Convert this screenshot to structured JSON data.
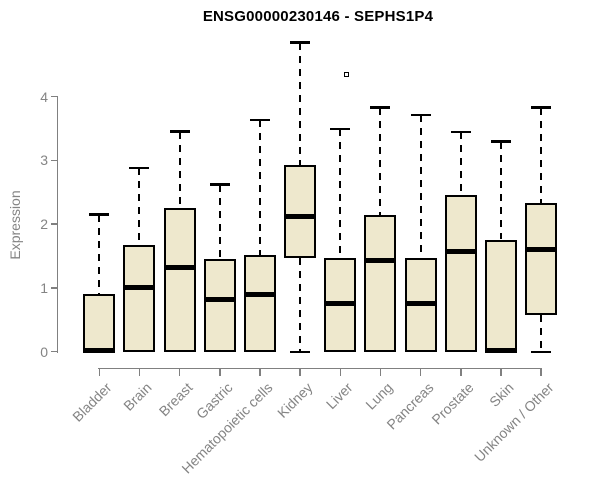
{
  "chart_data": {
    "type": "boxplot",
    "title": "ENSG00000230146 - SEPHS1P4",
    "ylabel": "Expression",
    "xlabel": "",
    "ylim": [
      0,
      4.87
    ],
    "yticks": [
      0,
      1,
      2,
      3,
      4
    ],
    "grid": false,
    "legend": null,
    "categories": [
      "Bladder",
      "Brain",
      "Breast",
      "Gastric",
      "Hematopoietic cells",
      "Kidney",
      "Liver",
      "Lung",
      "Pancreas",
      "Prostate",
      "Skin",
      "Unknown / Other"
    ],
    "series": [
      {
        "name": "Bladder",
        "whisker_low": 0,
        "q1": 0,
        "median": 0.02,
        "q3": 0.9,
        "whisker_high": 2.15,
        "outliers": []
      },
      {
        "name": "Brain",
        "whisker_low": 0,
        "q1": 0,
        "median": 1.0,
        "q3": 1.68,
        "whisker_high": 2.88,
        "outliers": []
      },
      {
        "name": "Breast",
        "whisker_low": 0,
        "q1": 0,
        "median": 1.32,
        "q3": 2.26,
        "whisker_high": 3.45,
        "outliers": []
      },
      {
        "name": "Gastric",
        "whisker_low": 0,
        "q1": 0,
        "median": 0.82,
        "q3": 1.46,
        "whisker_high": 2.62,
        "outliers": []
      },
      {
        "name": "Hematopoietic cells",
        "whisker_low": 0,
        "q1": 0,
        "median": 0.9,
        "q3": 1.52,
        "whisker_high": 3.63,
        "outliers": []
      },
      {
        "name": "Kidney",
        "whisker_low": 0,
        "q1": 1.47,
        "median": 2.12,
        "q3": 2.93,
        "whisker_high": 4.85,
        "outliers": []
      },
      {
        "name": "Liver",
        "whisker_low": 0,
        "q1": 0,
        "median": 0.76,
        "q3": 1.47,
        "whisker_high": 3.49,
        "outliers": [
          4.35
        ]
      },
      {
        "name": "Lung",
        "whisker_low": 0,
        "q1": 0,
        "median": 1.43,
        "q3": 2.14,
        "whisker_high": 3.83,
        "outliers": []
      },
      {
        "name": "Pancreas",
        "whisker_low": 0,
        "q1": 0,
        "median": 0.75,
        "q3": 1.47,
        "whisker_high": 3.71,
        "outliers": []
      },
      {
        "name": "Prostate",
        "whisker_low": 0,
        "q1": 0,
        "median": 1.57,
        "q3": 2.46,
        "whisker_high": 3.44,
        "outliers": []
      },
      {
        "name": "Skin",
        "whisker_low": 0,
        "q1": 0,
        "median": 0.02,
        "q3": 1.76,
        "whisker_high": 3.29,
        "outliers": []
      },
      {
        "name": "Unknown / Other",
        "whisker_low": 0,
        "q1": 0.57,
        "median": 1.6,
        "q3": 2.34,
        "whisker_high": 3.83,
        "outliers": []
      }
    ]
  },
  "colors": {
    "box_fill": "#EEE8CD",
    "box_border": "#000000",
    "median": "#000000",
    "whisker": "#000000",
    "axis": "#808080",
    "tick_text": "#848484",
    "title_text": "#000000",
    "background": "#FFFFFF"
  }
}
